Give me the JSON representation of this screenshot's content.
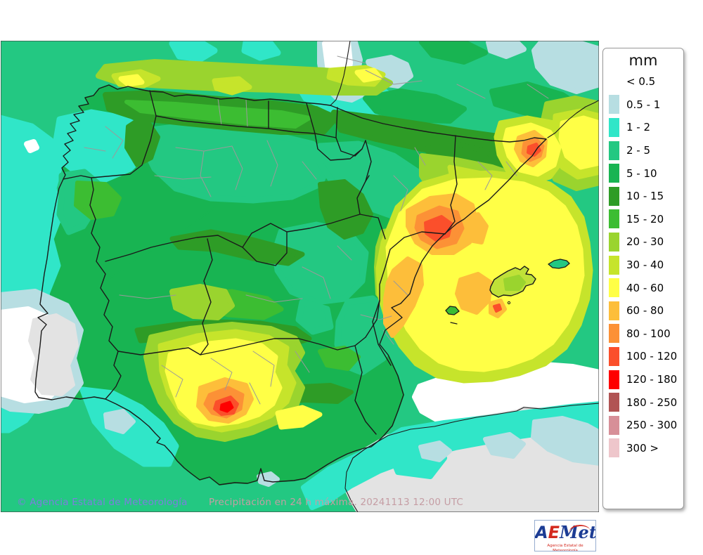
{
  "legend": {
    "title": "mm",
    "entries": [
      {
        "label": "< 0.5",
        "color": null
      },
      {
        "label": "0.5 - 1",
        "color": "#b7dee2"
      },
      {
        "label": "1 - 2",
        "color": "#30e6c8"
      },
      {
        "label": "2 - 5",
        "color": "#23c882"
      },
      {
        "label": "5 - 10",
        "color": "#18b452"
      },
      {
        "label": "10 - 15",
        "color": "#2e9c26"
      },
      {
        "label": "15 - 20",
        "color": "#3cbd32"
      },
      {
        "label": "20 - 30",
        "color": "#9ad42e"
      },
      {
        "label": "30 - 40",
        "color": "#c6e42b"
      },
      {
        "label": "40 - 60",
        "color": "#ffff46"
      },
      {
        "label": "60 - 80",
        "color": "#fdbe3a"
      },
      {
        "label": "80 - 100",
        "color": "#fc9136"
      },
      {
        "label": "100 - 120",
        "color": "#fb4f2b"
      },
      {
        "label": "120 - 180",
        "color": "#fe0000"
      },
      {
        "label": "180 - 250",
        "color": "#b15454"
      },
      {
        "label": "250 - 300",
        "color": "#d78f98"
      },
      {
        "label": "300 >",
        "color": "#eec6cb"
      }
    ]
  },
  "footer": {
    "copyright": "© Agencia Estatal de Meteorología",
    "copyright_color": "#7d7cdf",
    "caption": "Precipitación en 24 h máxima. 20241113 12:00 UTC",
    "caption_color": "#c59da4"
  },
  "logo": {
    "part_a": "A",
    "part_e": "E",
    "part_met": "Met",
    "subtitle": "Agencia Estatal de Meteorología"
  }
}
